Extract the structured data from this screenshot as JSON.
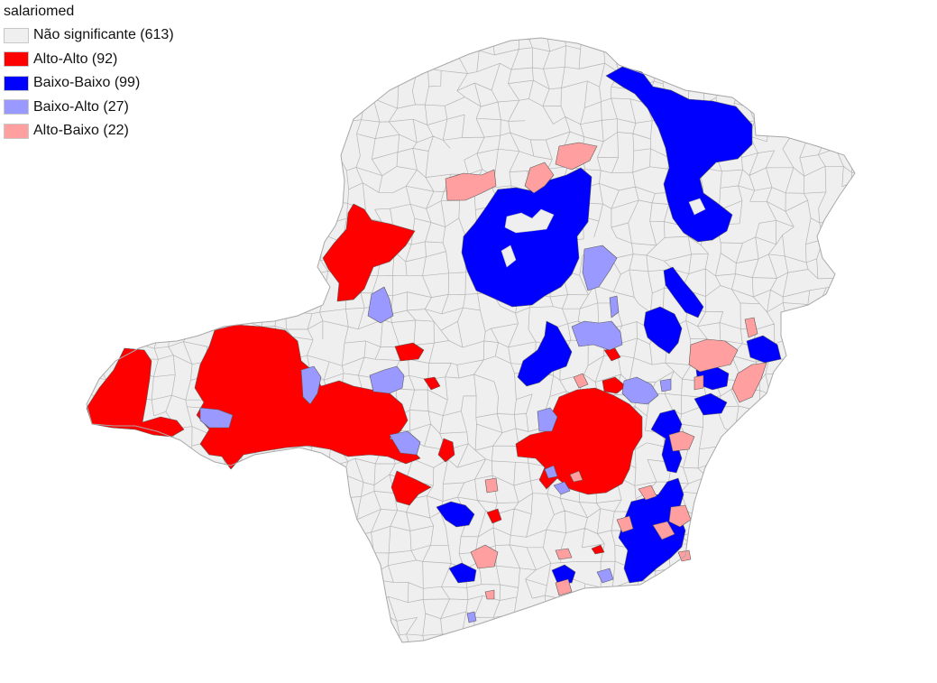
{
  "legend": {
    "title": "salariomed",
    "items": [
      {
        "label": "Não significante (613)",
        "color": "#efefef",
        "name": "not-significant"
      },
      {
        "label": "Alto-Alto (92)",
        "color": "#ff0000",
        "name": "high-high"
      },
      {
        "label": "Baixo-Baixo (99)",
        "color": "#0000ff",
        "name": "low-low"
      },
      {
        "label": "Baixo-Alto (27)",
        "color": "#9999ff",
        "name": "low-high"
      },
      {
        "label": "Alto-Baixo (22)",
        "color": "#ff9f9f",
        "name": "high-low"
      }
    ]
  },
  "map": {
    "border_color": "#b4b4b4"
  }
}
